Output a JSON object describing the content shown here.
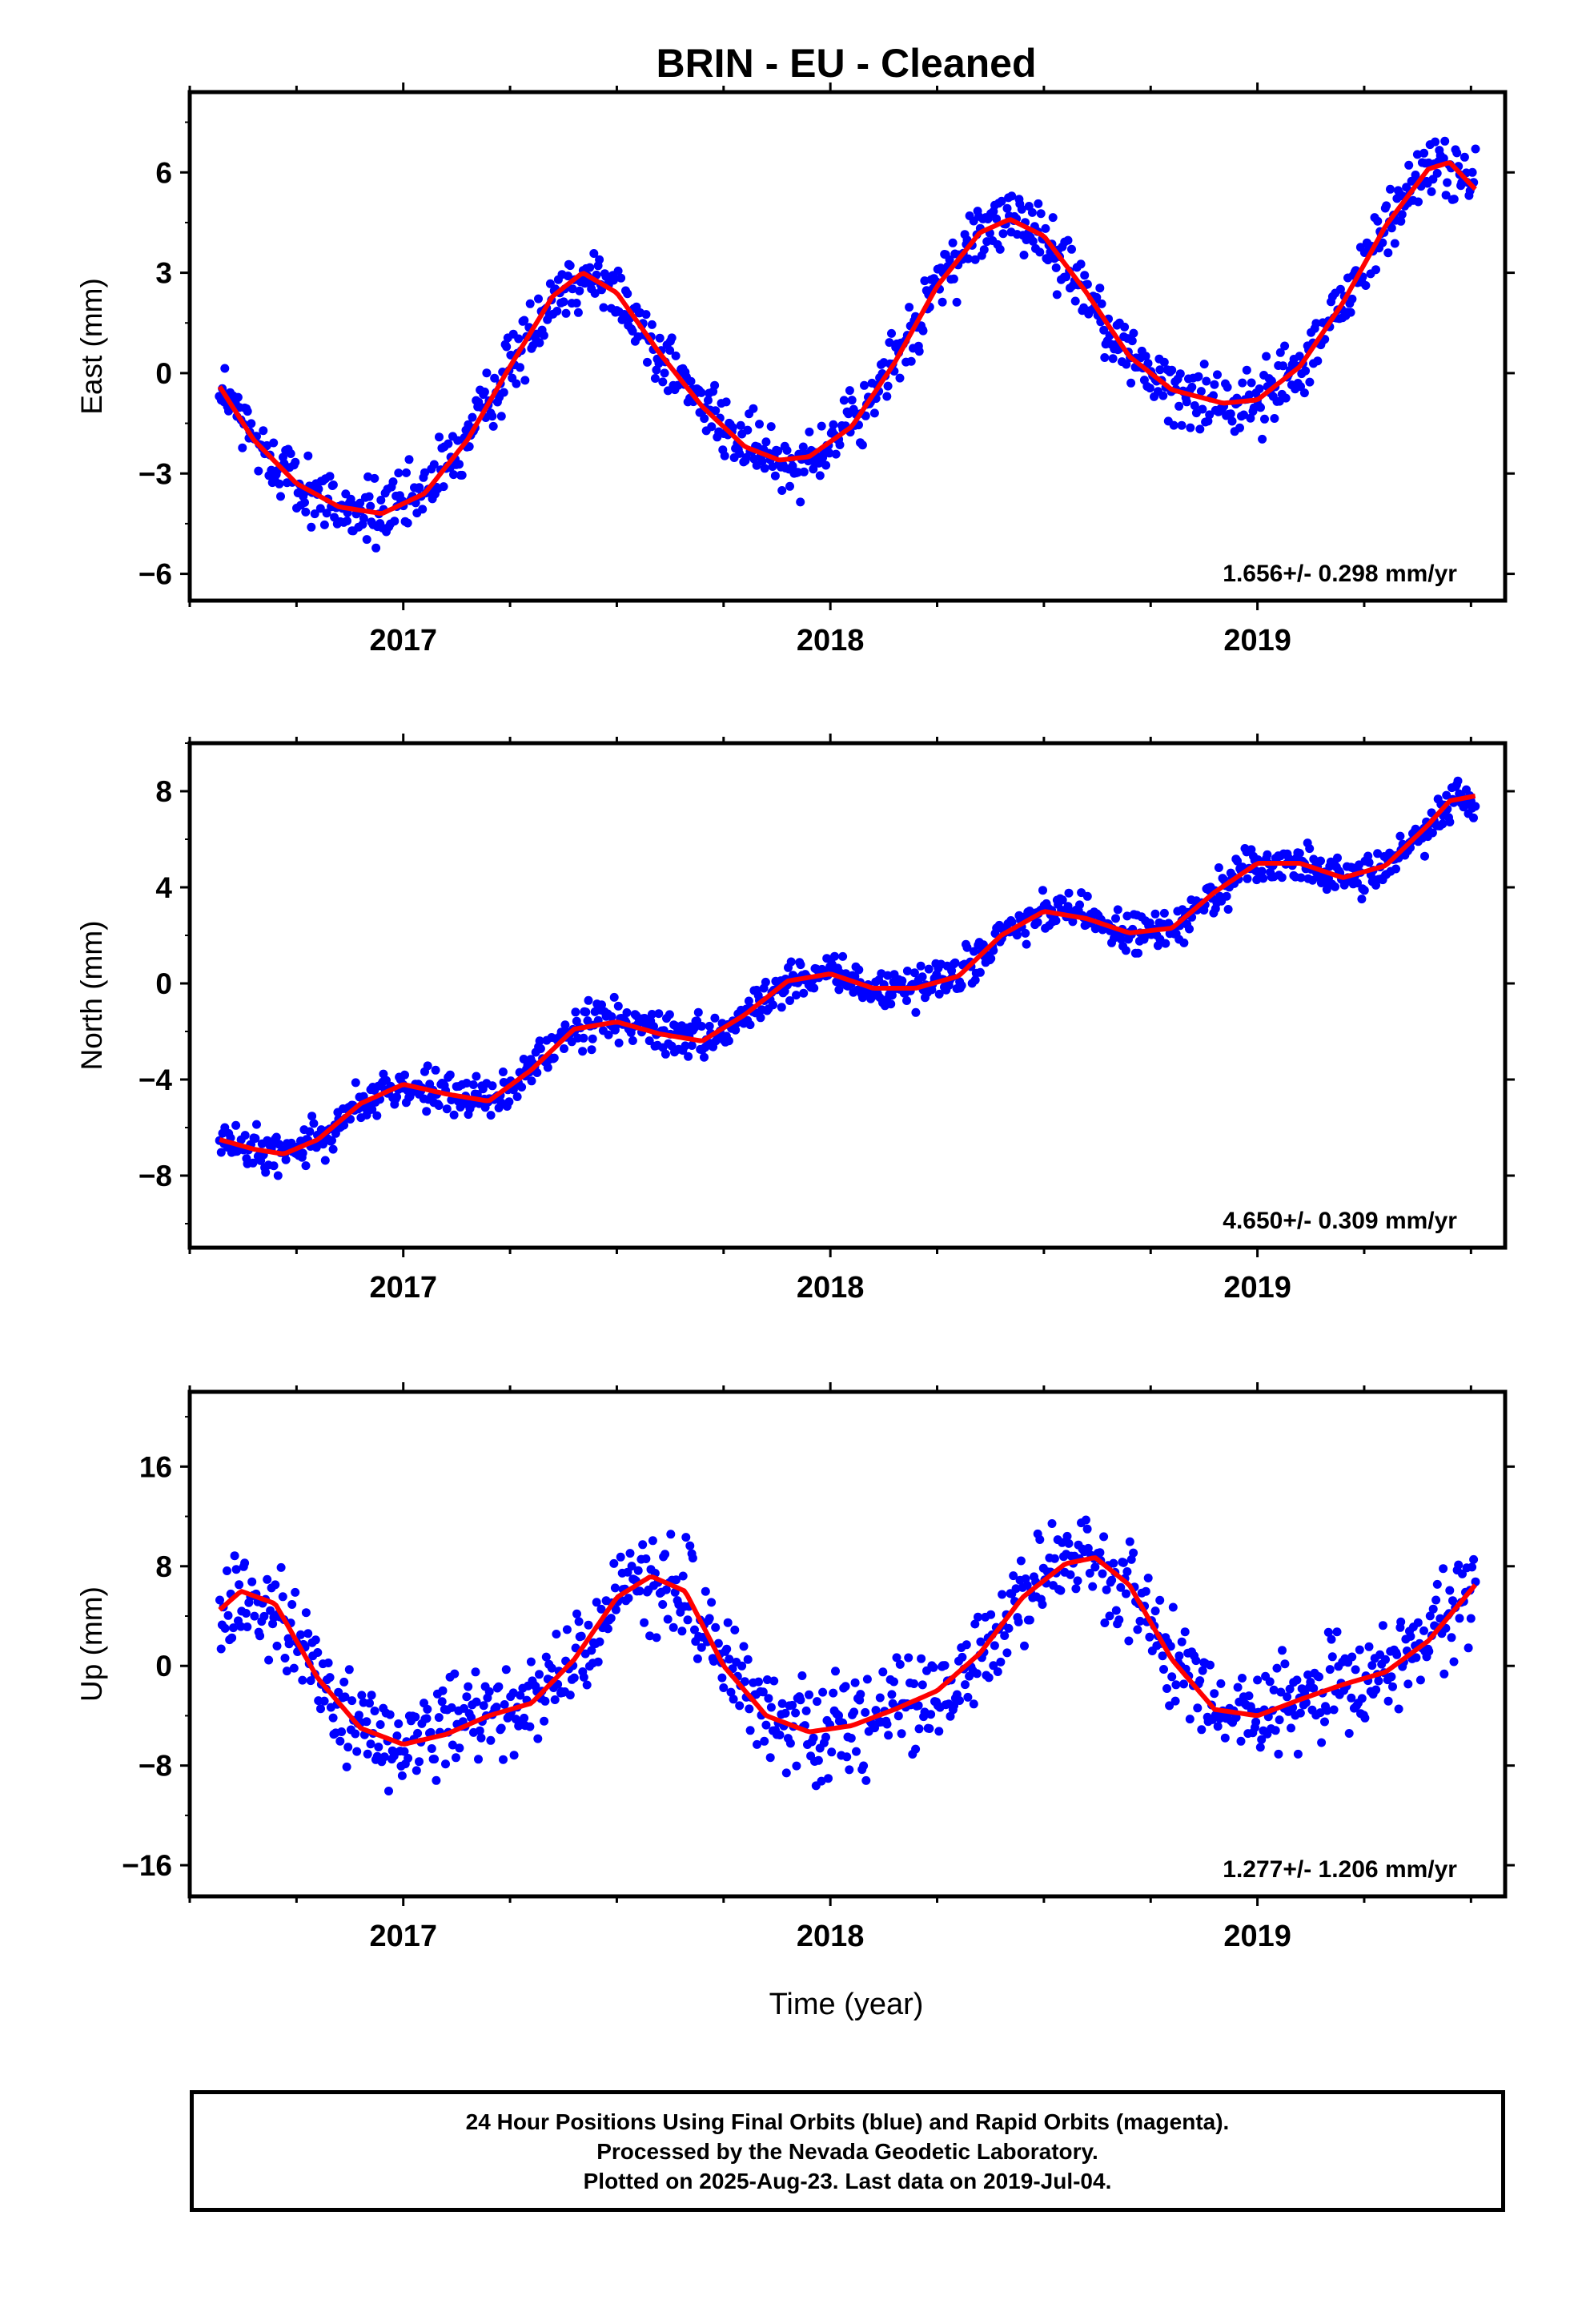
{
  "title": "BRIN  - EU - Cleaned",
  "xlabel": "Time (year)",
  "colors": {
    "points": "#0000ff",
    "fit": "#ff0000",
    "axes": "#000000"
  },
  "footer": {
    "line1": "24 Hour Positions Using Final Orbits (blue) and Rapid Orbits (magenta).",
    "line2": "Processed by the Nevada Geodetic Laboratory.",
    "line3": "Plotted on 2025-Aug-23. Last data on 2019-Jul-04."
  },
  "chart_data": [
    {
      "type": "scatter",
      "ylabel": "East (mm)",
      "xlim": [
        2016.5,
        2019.58
      ],
      "ylim": [
        -6.8,
        8.4
      ],
      "xticks": [
        2017,
        2018,
        2019
      ],
      "yticks": [
        -6,
        -3,
        0,
        3,
        6
      ],
      "rate_label": "1.656+/- 0.298 mm/yr",
      "x_range": [
        2016.57,
        2019.51
      ],
      "fit": {
        "x": [
          2016.57,
          2016.65,
          2016.75,
          2016.85,
          2016.95,
          2017.05,
          2017.15,
          2017.25,
          2017.35,
          2017.42,
          2017.5,
          2017.6,
          2017.7,
          2017.8,
          2017.88,
          2017.95,
          2018.05,
          2018.15,
          2018.25,
          2018.35,
          2018.42,
          2018.5,
          2018.6,
          2018.7,
          2018.8,
          2018.92,
          2019.0,
          2019.1,
          2019.2,
          2019.3,
          2019.4,
          2019.45,
          2019.51
        ],
        "y": [
          -0.4,
          -2.0,
          -3.3,
          -4.0,
          -4.2,
          -3.6,
          -2.0,
          0.2,
          2.3,
          3.0,
          2.4,
          0.6,
          -1.0,
          -2.2,
          -2.6,
          -2.5,
          -1.6,
          0.3,
          2.6,
          4.2,
          4.6,
          4.1,
          2.4,
          0.5,
          -0.5,
          -0.9,
          -0.8,
          0.2,
          2.1,
          4.4,
          6.1,
          6.3,
          5.5
        ]
      },
      "noise": 0.9,
      "point_count": 950
    },
    {
      "type": "scatter",
      "ylabel": "North (mm)",
      "xlim": [
        2016.5,
        2019.58
      ],
      "ylim": [
        -11.0,
        10.0
      ],
      "xticks": [
        2017,
        2018,
        2019
      ],
      "yticks": [
        -8,
        -4,
        0,
        4,
        8
      ],
      "rate_label": "4.650+/- 0.309 mm/yr",
      "x_range": [
        2016.57,
        2019.51
      ],
      "fit": {
        "x": [
          2016.57,
          2016.65,
          2016.72,
          2016.8,
          2016.9,
          2017.0,
          2017.1,
          2017.2,
          2017.3,
          2017.4,
          2017.5,
          2017.6,
          2017.7,
          2017.8,
          2017.9,
          2018.0,
          2018.1,
          2018.2,
          2018.3,
          2018.4,
          2018.5,
          2018.6,
          2018.7,
          2018.8,
          2018.9,
          2019.0,
          2019.1,
          2019.2,
          2019.3,
          2019.4,
          2019.45,
          2019.51
        ],
        "y": [
          -6.5,
          -6.9,
          -7.1,
          -6.5,
          -5.0,
          -4.2,
          -4.6,
          -4.9,
          -3.6,
          -1.9,
          -1.6,
          -2.1,
          -2.4,
          -1.3,
          0.1,
          0.4,
          -0.2,
          -0.2,
          0.3,
          2.0,
          3.0,
          2.7,
          2.1,
          2.3,
          3.8,
          5.0,
          5.0,
          4.4,
          4.9,
          6.6,
          7.6,
          7.8
        ]
      },
      "noise": 0.8,
      "point_count": 950
    },
    {
      "type": "scatter",
      "ylabel": "Up (mm)",
      "xlim": [
        2016.5,
        2019.58
      ],
      "ylim": [
        -18.5,
        22.0
      ],
      "xticks": [
        2017,
        2018,
        2019
      ],
      "yticks": [
        -16,
        -8,
        0,
        8,
        16
      ],
      "rate_label": "1.277+/- 1.206 mm/yr",
      "x_range": [
        2016.57,
        2019.51
      ],
      "fit": {
        "x": [
          2016.57,
          2016.62,
          2016.7,
          2016.8,
          2016.9,
          2017.0,
          2017.1,
          2017.2,
          2017.3,
          2017.4,
          2017.5,
          2017.58,
          2017.66,
          2017.75,
          2017.85,
          2017.95,
          2018.05,
          2018.15,
          2018.25,
          2018.35,
          2018.45,
          2018.55,
          2018.62,
          2018.7,
          2018.8,
          2018.9,
          2019.0,
          2019.1,
          2019.2,
          2019.3,
          2019.4,
          2019.51
        ],
        "y": [
          4.5,
          6.0,
          5.0,
          -1.0,
          -5.0,
          -6.3,
          -5.5,
          -4.0,
          -3.0,
          0.5,
          5.5,
          7.2,
          6.0,
          0.0,
          -4.0,
          -5.3,
          -4.8,
          -3.5,
          -2.0,
          1.0,
          5.5,
          8.2,
          8.7,
          6.5,
          0.5,
          -3.5,
          -4.0,
          -2.7,
          -1.5,
          -0.5,
          2.0,
          6.5
        ]
      },
      "noise": 3.5,
      "point_count": 900
    }
  ]
}
